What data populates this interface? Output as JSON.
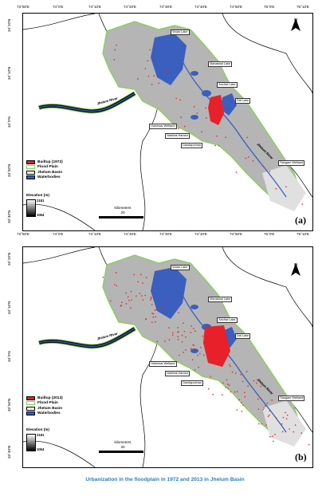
{
  "top_axis_labels": [
    "73°50'E",
    "74°0'E",
    "74°10'E",
    "74°20'E",
    "74°30'E",
    "74°40'E",
    "74°50'E",
    "75°0'E",
    "75°10'E"
  ],
  "bottom_axis_labels": [
    "73°50'E",
    "74°0'E",
    "74°10'E",
    "74°20'E",
    "74°30'E",
    "74°40'E",
    "74°50'E",
    "75°0'E",
    "75°10'E"
  ],
  "left_axis_labels": [
    "34°20'N",
    "34°10'N",
    "34°0'N",
    "33°50'N",
    "33°40'N"
  ],
  "panels": [
    {
      "label": "(a)",
      "legend": [
        "Builtup (1972)",
        "Flood Plain",
        "Jhelum Basin",
        "Waterbodies"
      ],
      "elevation": {
        "title": "Elevation (m)",
        "high": "2181",
        "low": "1064"
      },
      "scale": {
        "unit": "kilometers",
        "value": "20"
      },
      "north": "N",
      "river_labels": [
        "Jhelum River",
        "Jhelum River"
      ],
      "callouts": [
        "Wular Lake",
        "Manasbal Lake",
        "Anchar Lake",
        "Dal Lake",
        "Hokersar Wetland",
        "Narkbal-Haralur",
        "Dandapohran",
        "Sangam Wetland"
      ],
      "builtup_level": 0.15
    },
    {
      "label": "(b)",
      "legend": [
        "Builtup (2013)",
        "Flood Plain",
        "Jhelum Basin",
        "Waterbodies"
      ],
      "elevation": {
        "title": "Elevation (m)",
        "high": "2181",
        "low": "1064"
      },
      "scale": {
        "unit": "kilometers",
        "value": "20"
      },
      "north": "N",
      "river_labels": [
        "Jhelum River",
        "Jhelum River"
      ],
      "callouts": [
        "Wular Lake",
        "Manasbal Lake",
        "Anchar Lake",
        "Dal Lake",
        "Hokersar Wetland",
        "Narkbal-Haralur",
        "Dandapochan",
        "Sangam Wetland"
      ],
      "builtup_level": 0.55
    }
  ],
  "caption": "Urbanization in the floodplain in 1972 and 2013 in Jhelum Basin",
  "colors": {
    "builtup": "#e8202a",
    "floodplain": "#8bd05a",
    "basin": "#000000",
    "water": "#3a5fbf",
    "caption": "#2b7fc3"
  }
}
